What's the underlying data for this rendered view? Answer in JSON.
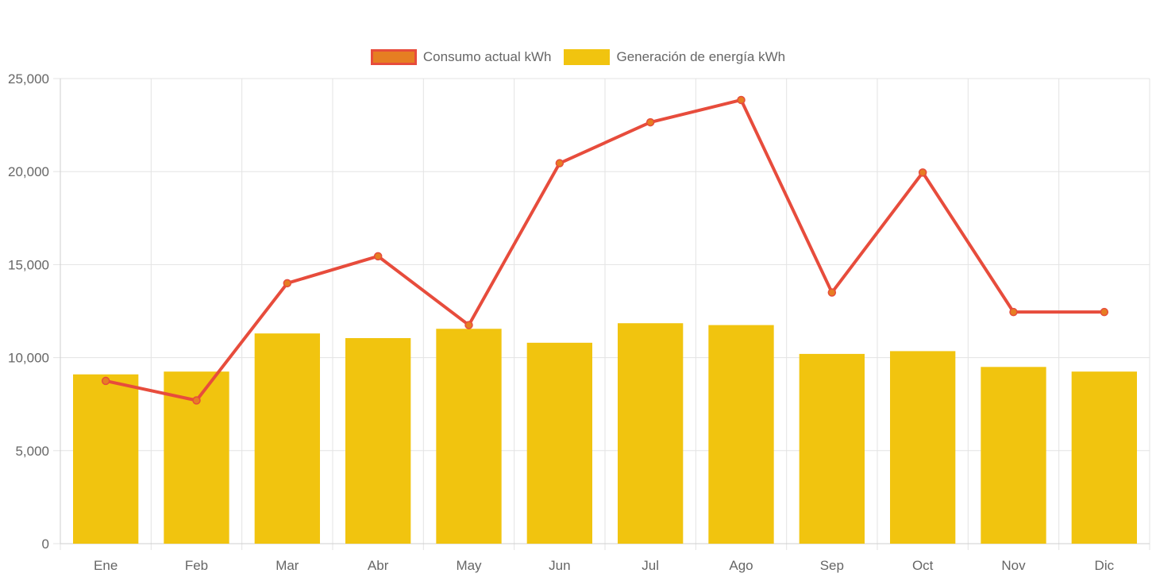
{
  "chart_data": {
    "type": "bar",
    "title": "",
    "xlabel": "",
    "ylabel": "",
    "ylim": [
      0,
      25000
    ],
    "yticks": [
      0,
      5000,
      10000,
      15000,
      20000,
      25000
    ],
    "ytick_labels": [
      "0",
      "5,000",
      "10,000",
      "15,000",
      "20,000",
      "25,000"
    ],
    "grid": true,
    "legend_position": "top-center",
    "categories": [
      "Ene",
      "Feb",
      "Mar",
      "Abr",
      "May",
      "Jun",
      "Jul",
      "Ago",
      "Sep",
      "Oct",
      "Nov",
      "Dic"
    ],
    "series": [
      {
        "name": "Consumo actual kWh",
        "type": "line",
        "color": "#E74C3C",
        "point_color": "#E67E22",
        "values": [
          8750,
          7700,
          14000,
          15450,
          11750,
          20450,
          22650,
          23850,
          13500,
          19950,
          12450,
          12450
        ]
      },
      {
        "name": "Generación de energía kWh",
        "type": "bar",
        "color": "#F1C40F",
        "values": [
          9100,
          9250,
          11300,
          11050,
          11550,
          10800,
          11850,
          11750,
          10200,
          10350,
          9500,
          9250
        ]
      }
    ]
  }
}
